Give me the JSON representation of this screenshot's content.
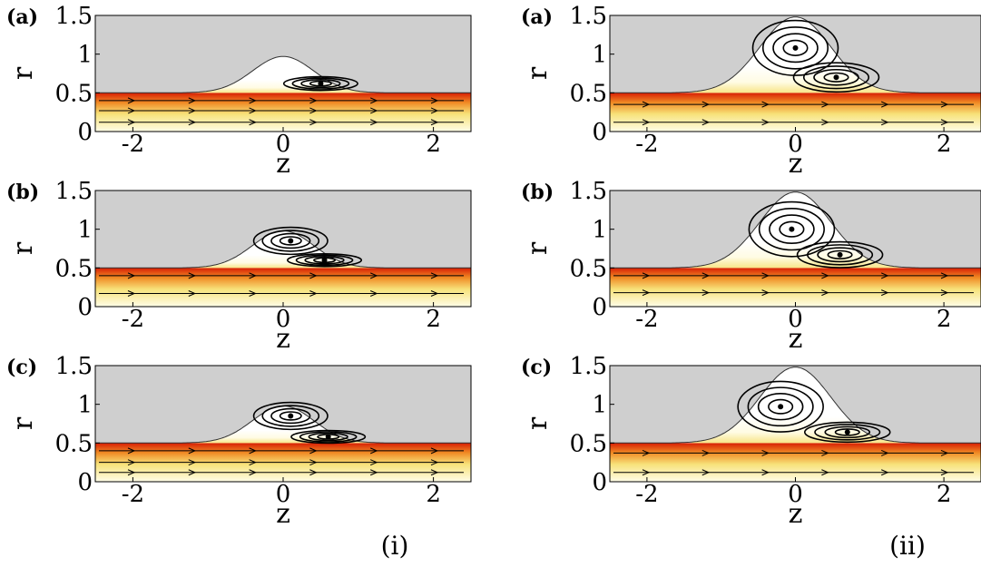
{
  "figure": {
    "group_labels": [
      "(i)",
      "(ii)"
    ],
    "panel_tags": [
      "(a)",
      "(b)",
      "(c)"
    ],
    "x_tick_labels": [
      "-2",
      "0",
      "2"
    ],
    "y_tick_labels": [
      "0",
      "0.5",
      "1",
      "1.5"
    ],
    "colors": {
      "background": "#ffffff",
      "gas_region": "#cfcfcf",
      "fluid_hot": "#d81e05",
      "fluid_mid": "#f08a24",
      "fluid_light": "#f7e27a",
      "fluid_pale": "#fffde8",
      "streamline": "#000000"
    }
  },
  "chart_data": [
    {
      "type": "area",
      "group": "(i)",
      "panel": "(a)",
      "xlabel": "z",
      "ylabel": "r",
      "xlim": [
        -2.5,
        2.5
      ],
      "ylim": [
        0,
        1.5
      ],
      "x_ticks": [
        -2,
        0,
        2
      ],
      "y_ticks": [
        0,
        0.5,
        1,
        1.5
      ],
      "interface_shape": {
        "base_radius": 0.5,
        "peak_radius": 0.97,
        "peak_z": 0.0,
        "half_width": 0.85
      },
      "vortex_centers": [
        {
          "z": 0.5,
          "r": 0.62
        }
      ],
      "streamline_r": [
        0.12,
        0.27,
        0.4
      ]
    },
    {
      "type": "area",
      "group": "(i)",
      "panel": "(b)",
      "xlabel": "z",
      "ylabel": "r",
      "xlim": [
        -2.5,
        2.5
      ],
      "ylim": [
        0,
        1.5
      ],
      "x_ticks": [
        -2,
        0,
        2
      ],
      "y_ticks": [
        0,
        0.5,
        1,
        1.5
      ],
      "interface_shape": {
        "base_radius": 0.5,
        "peak_radius": 0.98,
        "peak_z": 0.0,
        "half_width": 0.85
      },
      "vortex_centers": [
        {
          "z": 0.1,
          "r": 0.85
        },
        {
          "z": 0.55,
          "r": 0.6
        }
      ],
      "streamline_r": [
        0.17,
        0.4
      ]
    },
    {
      "type": "area",
      "group": "(i)",
      "panel": "(c)",
      "xlabel": "z",
      "ylabel": "r",
      "xlim": [
        -2.5,
        2.5
      ],
      "ylim": [
        0,
        1.5
      ],
      "x_ticks": [
        -2,
        0,
        2
      ],
      "y_ticks": [
        0,
        0.5,
        1,
        1.5
      ],
      "interface_shape": {
        "base_radius": 0.5,
        "peak_radius": 0.98,
        "peak_z": 0.0,
        "half_width": 0.85
      },
      "vortex_centers": [
        {
          "z": 0.1,
          "r": 0.85
        },
        {
          "z": 0.6,
          "r": 0.58
        }
      ],
      "streamline_r": [
        0.12,
        0.25,
        0.4
      ]
    },
    {
      "type": "area",
      "group": "(ii)",
      "panel": "(a)",
      "xlabel": "z",
      "ylabel": "r",
      "xlim": [
        -2.5,
        2.5
      ],
      "ylim": [
        0,
        1.5
      ],
      "x_ticks": [
        -2,
        0,
        2
      ],
      "y_ticks": [
        0,
        0.5,
        1,
        1.5
      ],
      "interface_shape": {
        "base_radius": 0.5,
        "peak_radius": 1.48,
        "peak_z": 0.0,
        "half_width": 1.0
      },
      "vortex_centers": [
        {
          "z": 0.0,
          "r": 1.08
        },
        {
          "z": 0.55,
          "r": 0.7
        }
      ],
      "streamline_r": [
        0.12,
        0.35
      ]
    },
    {
      "type": "area",
      "group": "(ii)",
      "panel": "(b)",
      "xlabel": "z",
      "ylabel": "r",
      "xlim": [
        -2.5,
        2.5
      ],
      "ylim": [
        0,
        1.5
      ],
      "x_ticks": [
        -2,
        0,
        2
      ],
      "y_ticks": [
        0,
        0.5,
        1,
        1.5
      ],
      "interface_shape": {
        "base_radius": 0.5,
        "peak_radius": 1.48,
        "peak_z": 0.0,
        "half_width": 1.0
      },
      "vortex_centers": [
        {
          "z": -0.05,
          "r": 1.0
        },
        {
          "z": 0.6,
          "r": 0.67
        }
      ],
      "streamline_r": [
        0.18,
        0.4
      ]
    },
    {
      "type": "area",
      "group": "(ii)",
      "panel": "(c)",
      "xlabel": "z",
      "ylabel": "r",
      "xlim": [
        -2.5,
        2.5
      ],
      "ylim": [
        0,
        1.5
      ],
      "x_ticks": [
        -2,
        0,
        2
      ],
      "y_ticks": [
        0,
        0.5,
        1,
        1.5
      ],
      "interface_shape": {
        "base_radius": 0.5,
        "peak_radius": 1.48,
        "peak_z": 0.0,
        "half_width": 1.0
      },
      "vortex_centers": [
        {
          "z": -0.2,
          "r": 0.97
        },
        {
          "z": 0.7,
          "r": 0.64
        }
      ],
      "streamline_r": [
        0.12,
        0.37
      ]
    }
  ]
}
